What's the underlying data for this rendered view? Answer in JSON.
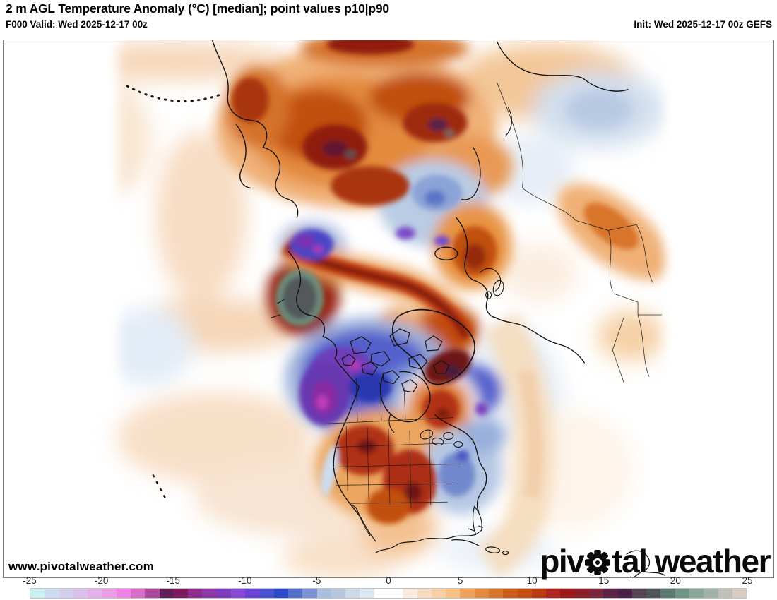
{
  "header": {
    "title": "2 m AGL Temperature Anomaly (°C) [median]; point values p10|p90",
    "valid_label": "F000 Valid: Wed 2025-12-17 00z",
    "init_label": "Init: Wed 2025-12-17 00z GEFS"
  },
  "map": {
    "watermark_url": "www.pivotalweather.com",
    "logo": {
      "part1": "piv",
      "part2": "tal weather"
    }
  },
  "colorbar": {
    "min": -25,
    "max": 25,
    "tick_values": [
      -25,
      -20,
      -15,
      -10,
      -5,
      0,
      5,
      10,
      15,
      20,
      25
    ],
    "tick_labels": [
      "-25",
      "-20",
      "-15",
      "-10",
      "-5",
      "0",
      "5",
      "10",
      "15",
      "20",
      "25"
    ],
    "colors": [
      "#c9f1ef",
      "#cbdcf2",
      "#d3cdee",
      "#dbc0ec",
      "#e3b0ea",
      "#ea9ce7",
      "#f084e6",
      "#d56fca",
      "#a94a9f",
      "#611d56",
      "#7c1b60",
      "#8f2d8f",
      "#8c3aa5",
      "#7e3cbd",
      "#8a4ad6",
      "#6a46d6",
      "#4853d0",
      "#2d47c9",
      "#5571cd",
      "#7b93d2",
      "#a9bedd",
      "#b6c7de",
      "#ccd9e8",
      "#dde7f0",
      "#ffffff",
      "#ffffff",
      "#faeadd",
      "#f8dcc0",
      "#f8cfa4",
      "#f7c085",
      "#eea35d",
      "#e38a3e",
      "#d8752c",
      "#cd5d1b",
      "#c84f12",
      "#bb3a12",
      "#b02420",
      "#9e1a1a",
      "#8c2028",
      "#7a2740",
      "#5e2348",
      "#4a2148",
      "#524450",
      "#4e5659",
      "#5b7a71",
      "#6f9585",
      "#8aa89a",
      "#9fb3a8",
      "#c2beb8",
      "#d9cac3"
    ]
  }
}
